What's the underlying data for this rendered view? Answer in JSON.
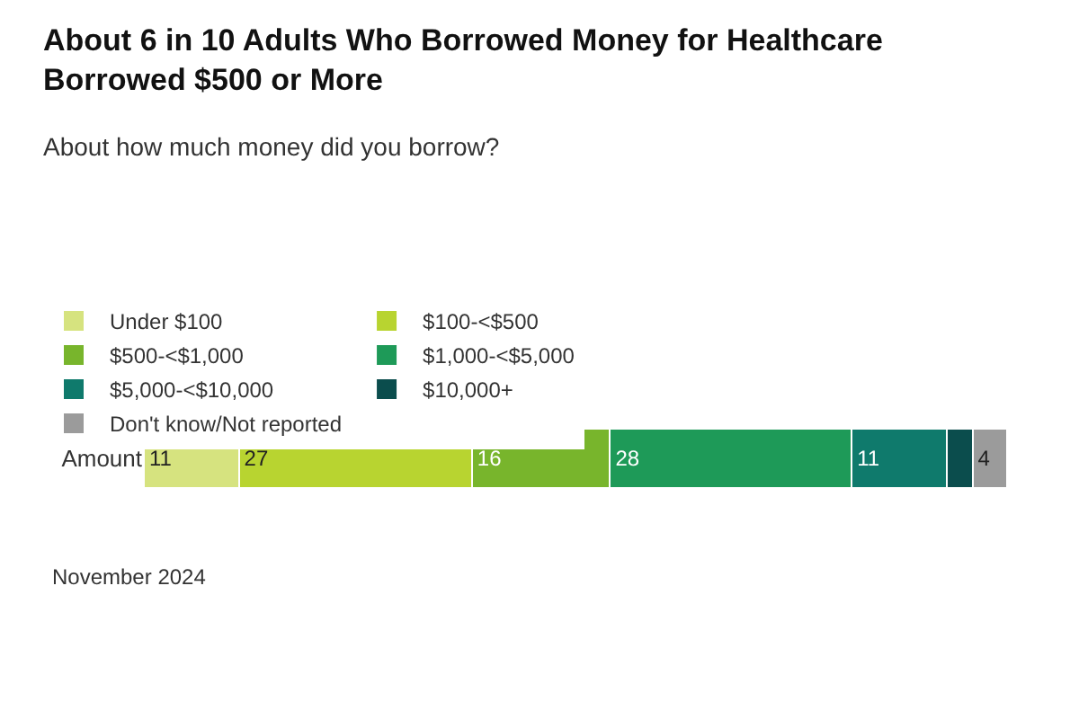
{
  "chart_data": {
    "type": "bar",
    "orientation": "horizontal",
    "stacked": true,
    "title": "About 6 in 10 Adults Who Borrowed Money for Healthcare\nBorrowed $500 or More",
    "subtitle": "About how much money did you borrow?",
    "categories": [
      "Amount"
    ],
    "tick_labels": "y",
    "legend": "top",
    "annotations": [
      "November 2024"
    ],
    "series": [
      {
        "name": "Under $100",
        "color": "#d6e37f",
        "values": [
          11
        ],
        "value_labels": [
          "11"
        ]
      },
      {
        "name": "$100-<$500",
        "color": "#b8d430",
        "values": [
          27
        ],
        "value_labels": [
          "27"
        ]
      },
      {
        "name": "$500-<$1,000",
        "color": "#78b52c",
        "values": [
          16
        ],
        "value_labels": [
          "16"
        ]
      },
      {
        "name": "$1,000-<$5,000",
        "color": "#1e9a58",
        "values": [
          28
        ],
        "value_labels": [
          "28"
        ]
      },
      {
        "name": "$5,000-<$10,000",
        "color": "#0f7a6c",
        "values": [
          11
        ],
        "value_labels": [
          "11"
        ]
      },
      {
        "name": "$10,000+",
        "color": "#0b4d4d",
        "values": [
          3
        ],
        "value_labels": [
          null
        ]
      },
      {
        "name": "Don't know/Not reported",
        "color": "#9b9b9b",
        "values": [
          4
        ],
        "value_labels": [
          "4"
        ]
      }
    ]
  }
}
